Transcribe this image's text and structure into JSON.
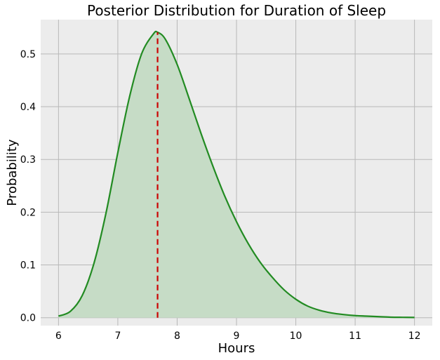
{
  "chart_data": {
    "type": "area",
    "title": "Posterior Distribution for Duration of Sleep",
    "xlabel": "Hours",
    "ylabel": "Probability",
    "xlim": [
      5.7,
      12.3
    ],
    "ylim": [
      -0.015,
      0.565
    ],
    "x_ticks": [
      6,
      7,
      8,
      9,
      10,
      11,
      12
    ],
    "y_ticks": [
      0.0,
      0.1,
      0.2,
      0.3,
      0.4,
      0.5
    ],
    "y_tick_labels": [
      "0.0",
      "0.1",
      "0.2",
      "0.3",
      "0.4",
      "0.5"
    ],
    "grid": true,
    "legend": "none",
    "series": [
      {
        "x": [
          6.0,
          6.2,
          6.4,
          6.6,
          6.8,
          7.0,
          7.2,
          7.4,
          7.6,
          7.67,
          7.8,
          8.0,
          8.2,
          8.4,
          8.6,
          8.8,
          9.0,
          9.2,
          9.4,
          9.6,
          9.8,
          10.0,
          10.2,
          10.4,
          10.6,
          10.8,
          11.0,
          11.2,
          11.4,
          11.6,
          11.8,
          12.0
        ],
        "y": [
          0.003,
          0.012,
          0.042,
          0.104,
          0.198,
          0.313,
          0.42,
          0.5,
          0.538,
          0.541,
          0.528,
          0.48,
          0.416,
          0.35,
          0.288,
          0.231,
          0.182,
          0.14,
          0.105,
          0.077,
          0.053,
          0.035,
          0.022,
          0.014,
          0.009,
          0.006,
          0.004,
          0.003,
          0.002,
          0.001,
          0.0007,
          0.0005
        ]
      }
    ],
    "marker": {
      "x": 7.67,
      "y": 0.541,
      "style": "dashed"
    },
    "colors": {
      "line": "#228b22",
      "fill": "#c6dcc6",
      "marker": "#cc0000",
      "plot_background": "#ececec",
      "grid": "#b8b8b8"
    }
  }
}
